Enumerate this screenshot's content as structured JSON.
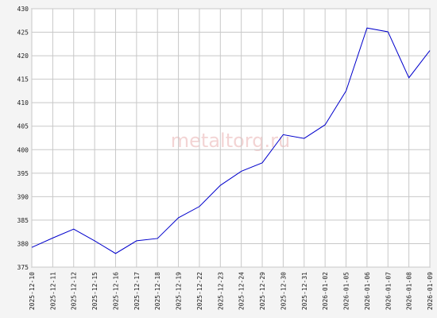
{
  "chart_data": {
    "type": "line",
    "watermark": "metaltorg.ru",
    "categories": [
      "2025-12-10",
      "2025-12-11",
      "2025-12-12",
      "2025-12-15",
      "2025-12-16",
      "2025-12-17",
      "2025-12-18",
      "2025-12-19",
      "2025-12-22",
      "2025-12-23",
      "2025-12-24",
      "2025-12-29",
      "2025-12-30",
      "2025-12-31",
      "2026-01-02",
      "2026-01-05",
      "2026-01-06",
      "2026-01-07",
      "2026-01-08",
      "2026-01-09"
    ],
    "values": [
      379.2,
      381.2,
      383.1,
      380.6,
      377.9,
      380.6,
      381.1,
      385.5,
      387.9,
      392.4,
      395.4,
      397.2,
      403.2,
      402.4,
      405.3,
      412.5,
      425.9,
      425.1,
      415.3,
      421.1
    ],
    "color": "#0000cc",
    "ylim": [
      375,
      430
    ],
    "yticks": [
      375,
      380,
      385,
      390,
      395,
      400,
      405,
      410,
      415,
      420,
      425,
      430
    ],
    "grid": true
  }
}
